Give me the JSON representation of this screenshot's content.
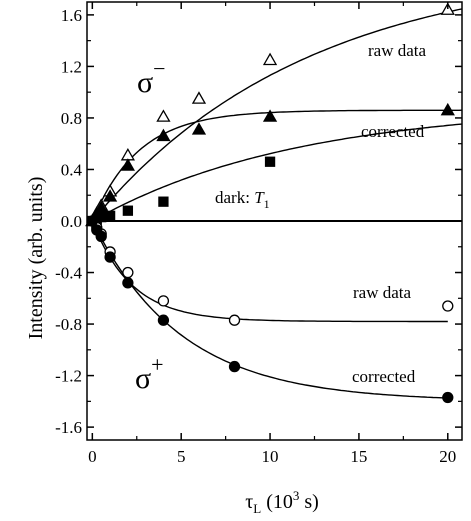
{
  "chart_data": {
    "type": "scatter",
    "title": "",
    "ylabel": "Intensity (arb. units)",
    "xlabel": {
      "main": "τ",
      "sub": "L",
      "rest": " (10",
      "sup": "3",
      "tail": " s)"
    },
    "xlim": [
      -0.3,
      20.8
    ],
    "ylim": [
      -1.7,
      1.7
    ],
    "x_ticks": [
      0,
      5,
      10,
      15,
      20
    ],
    "x_tick_labels": [
      "0",
      "5",
      "10",
      "15",
      "20"
    ],
    "y_ticks": [
      1.6,
      1.2,
      0.8,
      0.4,
      0.0,
      -0.4,
      -0.8,
      -1.2,
      -1.6
    ],
    "y_tick_labels": [
      "1.6",
      "1.2",
      "0.8",
      "0.4",
      "0.0",
      "-0.4",
      "-0.8",
      "-1.2",
      "-1.6"
    ],
    "zero_line": true,
    "grid": false,
    "series": [
      {
        "key": "sigma_minus_raw",
        "marker": "triangle-open",
        "x": [
          0,
          0.25,
          0.5,
          1,
          2,
          4,
          6,
          10,
          20
        ],
        "y": [
          0.0,
          0.06,
          0.12,
          0.23,
          0.51,
          0.81,
          0.95,
          1.25,
          1.64
        ]
      },
      {
        "key": "sigma_minus_corrected",
        "marker": "triangle-filled",
        "x": [
          0,
          0.25,
          0.5,
          1,
          2,
          4,
          6,
          10,
          20
        ],
        "y": [
          0.0,
          0.05,
          0.1,
          0.19,
          0.43,
          0.66,
          0.71,
          0.81,
          0.86
        ]
      },
      {
        "key": "dark_T1",
        "marker": "square-filled",
        "x": [
          0,
          0.25,
          0.5,
          1,
          2,
          4,
          10
        ],
        "y": [
          0.0,
          0.01,
          0.03,
          0.04,
          0.08,
          0.15,
          0.46
        ]
      },
      {
        "key": "sigma_plus_raw",
        "marker": "circle-open",
        "x": [
          0,
          0.25,
          0.5,
          1,
          2,
          4,
          8,
          20
        ],
        "y": [
          0.0,
          -0.05,
          -0.1,
          -0.24,
          -0.4,
          -0.62,
          -0.77,
          -0.66
        ]
      },
      {
        "key": "sigma_plus_corrected",
        "marker": "circle-filled",
        "x": [
          0,
          0.25,
          0.5,
          1,
          2,
          4,
          8,
          20
        ],
        "y": [
          0.0,
          -0.07,
          -0.12,
          -0.28,
          -0.48,
          -0.77,
          -1.13,
          -1.37
        ]
      }
    ],
    "fits": [
      {
        "key": "fit_sigma_minus_raw",
        "A": 2.0,
        "tau": 12.0,
        "x_end": 20.8
      },
      {
        "key": "fit_sigma_minus_corrected",
        "A": 0.86,
        "tau": 2.6,
        "x_end": 20.8
      },
      {
        "key": "fit_dark_T1",
        "A": 0.9,
        "tau": 11.5,
        "x_end": 20.8
      },
      {
        "key": "fit_sigma_plus_raw",
        "A": -0.78,
        "tau": 2.2,
        "x_end": 20.0
      },
      {
        "key": "fit_sigma_plus_corrected",
        "A": -1.4,
        "tau": 5.0,
        "x_end": 20.0
      }
    ],
    "annotations": {
      "sigma_minus": {
        "base": "σ",
        "sup": "−"
      },
      "sigma_plus": {
        "base": "σ",
        "sup": "+"
      },
      "raw_data_top": "raw data",
      "corrected_top": "corrected",
      "dark_t1": {
        "text": "dark: ",
        "italic": "T",
        "sub": "1"
      },
      "raw_data_bottom": "raw data",
      "corrected_bottom": "corrected"
    }
  }
}
